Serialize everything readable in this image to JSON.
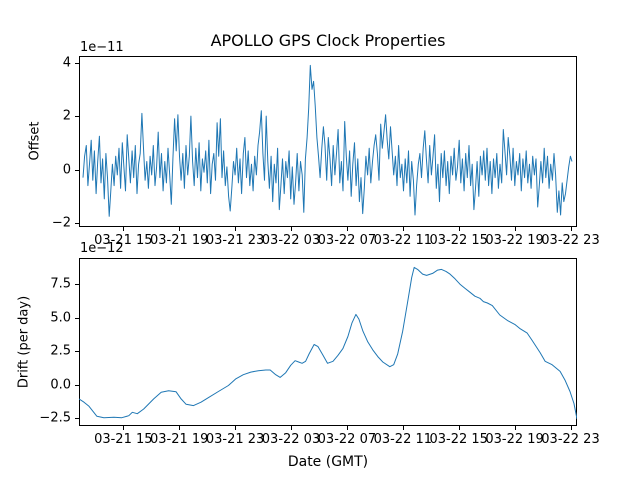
{
  "figure": {
    "background": "#ffffff",
    "text_color": "#000000"
  },
  "chart_data": [
    {
      "type": "line",
      "title": "APOLLO GPS Clock Properties",
      "ylabel": "Offset",
      "y_scale_label": "1e−11",
      "line_color": "#1f77b4",
      "grid": false,
      "legend": null,
      "ylim": [
        -2.15,
        4.25
      ],
      "y_tick_values": [
        4,
        2,
        0,
        -2
      ],
      "y_tick_labels": [
        "4",
        "2",
        "0",
        "−2"
      ],
      "x_tick_labels": [
        "03-21 15",
        "03-21 19",
        "03-21 23",
        "03-22 03",
        "03-22 07",
        "03-22 11",
        "03-22 15",
        "03-22 19",
        "03-22 23"
      ],
      "values_unit": "1e-11",
      "values": [
        -0.3,
        0.5,
        0.9,
        -0.6,
        0.2,
        1.1,
        -0.4,
        0.7,
        -0.9,
        0.3,
        1.25,
        -0.5,
        0.4,
        -1.1,
        0.6,
        -0.3,
        -1.75,
        -0.8,
        0.2,
        -0.6,
        0.5,
        -0.2,
        0.8,
        -0.7,
        1.0,
        0.1,
        -0.8,
        1.3,
        0.4,
        -0.5,
        0.7,
        -0.3,
        0.9,
        -0.9,
        0.2,
        0.6,
        2.1,
        0.8,
        -0.4,
        0.3,
        -0.7,
        0.5,
        -0.2,
        0.9,
        -0.6,
        0.1,
        1.4,
        -0.3,
        0.6,
        -0.8,
        0.3,
        -0.5,
        0.8,
        -0.2,
        -1.3,
        0.4,
        1.9,
        0.7,
        2.05,
        0.5,
        -0.4,
        0.6,
        -0.7,
        0.9,
        -0.2,
        0.5,
        2.0,
        0.3,
        -0.6,
        0.8,
        -0.3,
        1.0,
        -0.8,
        0.4,
        -0.1,
        0.7,
        -0.5,
        1.1,
        -0.9,
        0.2,
        0.6,
        -0.4,
        1.75,
        0.5,
        1.9,
        -0.3,
        0.7,
        -0.6,
        0.1,
        -1.0,
        -1.55,
        -0.7,
        0.3,
        -0.2,
        0.8,
        -0.5,
        0.4,
        -0.9,
        0.6,
        1.2,
        -0.3,
        0.7,
        -0.6,
        0.2,
        -0.8,
        0.5,
        -0.2,
        0.9,
        1.4,
        2.2,
        0.6,
        -0.4,
        2.0,
        0.3,
        -0.7,
        0.5,
        -1.2,
        0.2,
        -0.5,
        0.8,
        -1.5,
        -0.6,
        0.4,
        -0.9,
        0.3,
        -0.3,
        0.7,
        -1.1,
        0.1,
        -1.3,
        -0.5,
        0.6,
        -0.8,
        0.3,
        -0.2,
        -1.6,
        0.4,
        1.2,
        2.3,
        3.9,
        3.0,
        3.3,
        2.4,
        1.2,
        0.5,
        -0.3,
        0.8,
        1.6,
        0.9,
        -0.4,
        1.2,
        0.4,
        -0.6,
        0.9,
        -0.2,
        0.6,
        1.5,
        -0.5,
        0.3,
        -0.8,
        1.8,
        0.5,
        -0.4,
        0.7,
        -1.0,
        0.2,
        1.0,
        -0.6,
        0.4,
        -1.2,
        -0.3,
        -1.65,
        -0.7,
        0.5,
        -0.2,
        0.8,
        -0.5,
        0.3,
        0.9,
        1.3,
        0.6,
        -0.4,
        1.7,
        0.8,
        1.4,
        2.05,
        1.1,
        0.4,
        1.6,
        0.7,
        -0.2,
        0.5,
        -0.6,
        0.9,
        -0.3,
        0.2,
        -0.8,
        0.4,
        -0.5,
        0.7,
        -1.0,
        0.3,
        -0.4,
        -1.7,
        -0.6,
        0.2,
        0.6,
        -0.3,
        0.8,
        1.45,
        0.4,
        -0.5,
        0.9,
        -0.2,
        0.5,
        1.3,
        -0.7,
        0.2,
        -1.2,
        0.6,
        -0.3,
        0.7,
        -0.6,
        0.3,
        -0.9,
        0.5,
        -0.2,
        0.8,
        -0.4,
        0.1,
        1.1,
        -0.5,
        0.4,
        -0.8,
        0.6,
        -0.3,
        0.9,
        -0.6,
        0.2,
        -1.5,
        -0.7,
        0.3,
        -1.0,
        0.5,
        -0.2,
        0.7,
        -0.4,
        0.8,
        -0.6,
        0.3,
        -0.9,
        0.4,
        -0.3,
        0.6,
        -0.7,
        0.2,
        -0.5,
        1.5,
        0.7,
        -0.2,
        1.2,
        0.5,
        -0.4,
        0.8,
        -0.6,
        0.3,
        -0.2,
        0.6,
        -0.8,
        0.4,
        -0.3,
        0.7,
        -0.5,
        0.2,
        -0.7,
        0.5,
        -0.2,
        0.4,
        -1.4,
        -0.6,
        0.3,
        -0.5,
        0.8,
        -0.3,
        0.5,
        -0.7,
        0.2,
        -0.4,
        0.6,
        -0.2,
        -1.6,
        -0.8,
        -1.7,
        -0.5,
        -1.2,
        -0.9,
        -0.4,
        0.1,
        0.5,
        0.3
      ]
    },
    {
      "type": "line",
      "title": "",
      "ylabel": "Drift (per day)",
      "xlabel": "Date (GMT)",
      "y_scale_label": "1e−12",
      "line_color": "#1f77b4",
      "grid": false,
      "legend": null,
      "ylim": [
        -3.07,
        9.45
      ],
      "y_tick_values": [
        7.5,
        5.0,
        2.5,
        0.0,
        -2.5
      ],
      "y_tick_labels": [
        "7.5",
        "5.0",
        "2.5",
        "0.0",
        "−2.5"
      ],
      "x_tick_labels": [
        "03-21 15",
        "03-21 19",
        "03-21 23",
        "03-22 03",
        "03-22 07",
        "03-22 11",
        "03-22 15",
        "03-22 19",
        "03-22 23"
      ],
      "values_unit": "1e-12",
      "points": [
        [
          0.0,
          -1.05
        ],
        [
          0.01,
          -1.3
        ],
        [
          0.02,
          -1.6
        ],
        [
          0.036,
          -2.35
        ],
        [
          0.05,
          -2.45
        ],
        [
          0.07,
          -2.42
        ],
        [
          0.086,
          -2.45
        ],
        [
          0.1,
          -2.3
        ],
        [
          0.107,
          -2.05
        ],
        [
          0.117,
          -2.15
        ],
        [
          0.13,
          -1.8
        ],
        [
          0.15,
          -1.05
        ],
        [
          0.165,
          -0.55
        ],
        [
          0.18,
          -0.45
        ],
        [
          0.195,
          -0.52
        ],
        [
          0.205,
          -1.05
        ],
        [
          0.215,
          -1.45
        ],
        [
          0.23,
          -1.55
        ],
        [
          0.245,
          -1.3
        ],
        [
          0.26,
          -0.95
        ],
        [
          0.28,
          -0.5
        ],
        [
          0.3,
          -0.05
        ],
        [
          0.315,
          0.45
        ],
        [
          0.33,
          0.75
        ],
        [
          0.345,
          0.95
        ],
        [
          0.36,
          1.05
        ],
        [
          0.375,
          1.1
        ],
        [
          0.384,
          1.1
        ],
        [
          0.395,
          0.75
        ],
        [
          0.404,
          0.55
        ],
        [
          0.415,
          0.9
        ],
        [
          0.425,
          1.45
        ],
        [
          0.434,
          1.8
        ],
        [
          0.441,
          1.7
        ],
        [
          0.448,
          1.6
        ],
        [
          0.455,
          1.75
        ],
        [
          0.462,
          2.3
        ],
        [
          0.472,
          3.0
        ],
        [
          0.48,
          2.85
        ],
        [
          0.49,
          2.2
        ],
        [
          0.499,
          1.6
        ],
        [
          0.51,
          1.75
        ],
        [
          0.52,
          2.2
        ],
        [
          0.53,
          2.7
        ],
        [
          0.54,
          3.6
        ],
        [
          0.548,
          4.6
        ],
        [
          0.556,
          5.25
        ],
        [
          0.562,
          4.9
        ],
        [
          0.57,
          4.0
        ],
        [
          0.58,
          3.2
        ],
        [
          0.59,
          2.6
        ],
        [
          0.6,
          2.1
        ],
        [
          0.61,
          1.7
        ],
        [
          0.624,
          1.35
        ],
        [
          0.632,
          1.5
        ],
        [
          0.64,
          2.3
        ],
        [
          0.65,
          4.0
        ],
        [
          0.66,
          6.2
        ],
        [
          0.668,
          8.0
        ],
        [
          0.673,
          8.75
        ],
        [
          0.68,
          8.6
        ],
        [
          0.69,
          8.25
        ],
        [
          0.698,
          8.15
        ],
        [
          0.71,
          8.3
        ],
        [
          0.72,
          8.55
        ],
        [
          0.728,
          8.6
        ],
        [
          0.737,
          8.45
        ],
        [
          0.745,
          8.25
        ],
        [
          0.755,
          7.9
        ],
        [
          0.765,
          7.5
        ],
        [
          0.775,
          7.2
        ],
        [
          0.785,
          6.9
        ],
        [
          0.795,
          6.6
        ],
        [
          0.805,
          6.45
        ],
        [
          0.812,
          6.2
        ],
        [
          0.82,
          6.1
        ],
        [
          0.83,
          5.9
        ],
        [
          0.845,
          5.2
        ],
        [
          0.86,
          4.8
        ],
        [
          0.875,
          4.5
        ],
        [
          0.885,
          4.2
        ],
        [
          0.9,
          3.85
        ],
        [
          0.91,
          3.3
        ],
        [
          0.926,
          2.4
        ],
        [
          0.936,
          1.75
        ],
        [
          0.95,
          1.5
        ],
        [
          0.966,
          1.0
        ],
        [
          0.976,
          0.35
        ],
        [
          0.986,
          -0.5
        ],
        [
          0.994,
          -1.4
        ],
        [
          1.0,
          -2.55
        ]
      ]
    }
  ]
}
